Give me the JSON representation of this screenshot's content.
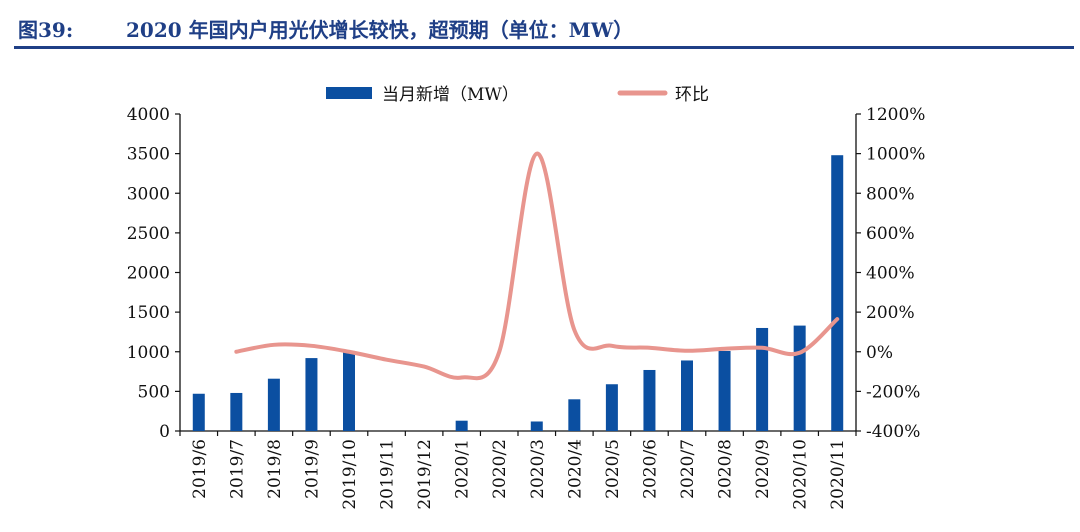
{
  "header": {
    "figure_number": "图39:",
    "title": "2020 年国内户用光伏增长较快，超预期（单位：MW）"
  },
  "colors": {
    "title": "#1f3f86",
    "bar": "#0b4fa1",
    "line": "#e8958e",
    "axis": "#111111"
  },
  "chart_data": {
    "type": "bar",
    "categories": [
      "2019/6",
      "2019/7",
      "2019/8",
      "2019/9",
      "2019/10",
      "2019/11",
      "2019/12",
      "2020/1",
      "2020/2",
      "2020/3",
      "2020/4",
      "2020/5",
      "2020/6",
      "2020/7",
      "2020/8",
      "2020/9",
      "2020/10",
      "2020/11"
    ],
    "series": [
      {
        "name": "当月新增（MW）",
        "type": "bar",
        "axis": "left",
        "values": [
          470,
          480,
          660,
          920,
          1010,
          null,
          null,
          130,
          null,
          120,
          400,
          590,
          770,
          890,
          1010,
          1300,
          1330,
          3480
        ]
      },
      {
        "name": "环比",
        "type": "line",
        "axis": "right",
        "values": [
          null,
          0,
          35,
          30,
          0,
          -40,
          -75,
          -130,
          -1,
          1000,
          110,
          30,
          20,
          5,
          15,
          20,
          -5,
          165
        ]
      }
    ],
    "y_left": {
      "min": 0,
      "max": 4000,
      "ticks": [
        0,
        500,
        1000,
        1500,
        2000,
        2500,
        3000,
        3500,
        4000
      ]
    },
    "y_right": {
      "min": -400,
      "max": 1200,
      "ticks": [
        "-400%",
        "-200%",
        "0%",
        "200%",
        "400%",
        "600%",
        "800%",
        "1000%",
        "1200%"
      ]
    },
    "legend_position": "top"
  }
}
